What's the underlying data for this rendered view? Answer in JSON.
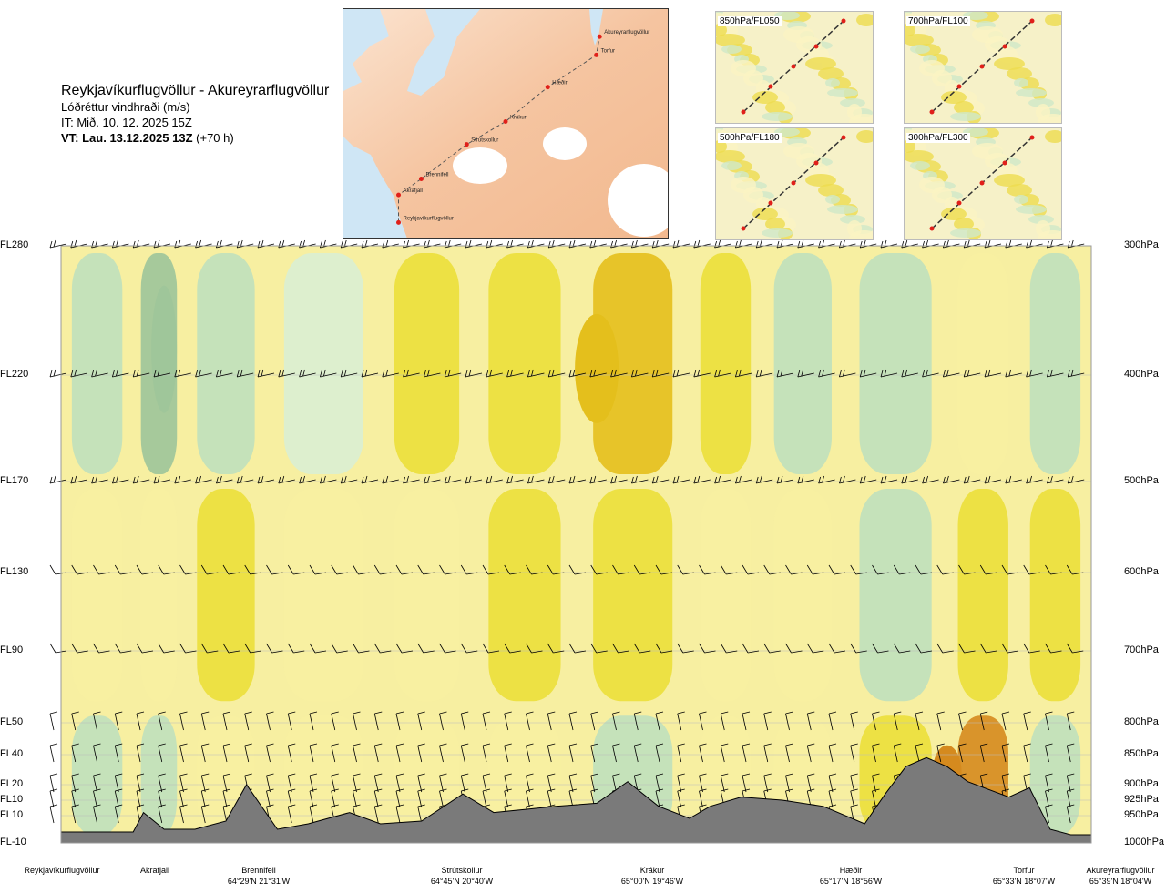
{
  "header": {
    "route": "Reykjavíkurflugvöllur - Akureyrarflugvöllur",
    "quantity": "Lóðréttur vindhraði (m/s)",
    "issued": "IT: Mið. 10. 12. 2025 15Z",
    "valid_bold": "VT: Lau. 13.12.2025 13Z",
    "valid_lead": "(+70 h)"
  },
  "map": {
    "points": [
      {
        "name": "Reykjavíkurflugvöllur",
        "x": 0.17,
        "y": 0.93
      },
      {
        "name": "Akrafjall",
        "x": 0.17,
        "y": 0.81
      },
      {
        "name": "Brennifell",
        "x": 0.24,
        "y": 0.74
      },
      {
        "name": "Strútskollur",
        "x": 0.38,
        "y": 0.59
      },
      {
        "name": "Krákur",
        "x": 0.5,
        "y": 0.49
      },
      {
        "name": "Hæðir",
        "x": 0.63,
        "y": 0.34
      },
      {
        "name": "Torfur",
        "x": 0.78,
        "y": 0.2
      },
      {
        "name": "Akureyrarflugvöllur",
        "x": 0.79,
        "y": 0.12
      }
    ]
  },
  "minimaps": [
    {
      "label": "850hPa/FL050"
    },
    {
      "label": "700hPa/FL100"
    },
    {
      "label": "500hPa/FL180"
    },
    {
      "label": "300hPa/FL300"
    }
  ],
  "left_axis": [
    "FL280",
    "FL220",
    "FL170",
    "FL130",
    "FL90",
    "FL50",
    "FL40",
    "FL20",
    "FL10",
    "FL10",
    "FL-10"
  ],
  "right_axis": [
    "300hPa",
    "400hPa",
    "500hPa",
    "600hPa",
    "700hPa",
    "800hPa",
    "850hPa",
    "900hPa",
    "925hPa",
    "950hPa",
    "1000hPa"
  ],
  "waypoints": [
    {
      "name": "Reykjavíkurflugvöllur",
      "coord": ""
    },
    {
      "name": "Akrafjall",
      "coord": ""
    },
    {
      "name": "Brennifell",
      "coord": "64°29'N 21°31'W"
    },
    {
      "name": "Strútskollur",
      "coord": "64°45'N 20°40'W"
    },
    {
      "name": "Krákur",
      "coord": "65°00'N 19°46'W"
    },
    {
      "name": "Hæðir",
      "coord": "65°17'N 18°56'W"
    },
    {
      "name": "Torfur",
      "coord": "65°33'N 18°07'W"
    },
    {
      "name": "Akureyrarflugvöllur",
      "coord": "65°39'N 18°04'W"
    }
  ],
  "chart_data": {
    "type": "heatmap",
    "variable": "vertical wind speed (m/s)",
    "y_levels_hpa": [
      300,
      400,
      500,
      600,
      700,
      800,
      850,
      900,
      925,
      950,
      1000
    ],
    "x_range": [
      0,
      1
    ],
    "colors": {
      "strong_down": "#9cc49a",
      "down": "#bfe0bd",
      "weak_down": "#d9eed3",
      "neutral": "#fbf6c4",
      "weak_up": "#f7efa1",
      "up": "#ebdf3a",
      "strong_up": "#e4bf1c",
      "very_strong_up": "#d58a1e",
      "terrain": "#7a7a7a"
    },
    "columns": [
      {
        "x": 0.0,
        "top": "down",
        "mid": "weak_up",
        "low": "down"
      },
      {
        "x": 0.07,
        "top": "strong_down",
        "mid": "weak_up",
        "low": "down"
      },
      {
        "x": 0.12,
        "top": "down",
        "mid": "up",
        "low": "weak_up"
      },
      {
        "x": 0.2,
        "top": "weak_down",
        "mid": "weak_up",
        "low": "weak_up"
      },
      {
        "x": 0.31,
        "top": "up",
        "mid": "weak_up",
        "low": "weak_up"
      },
      {
        "x": 0.4,
        "top": "up",
        "mid": "up",
        "low": "weak_up"
      },
      {
        "x": 0.5,
        "top": "strong_up",
        "mid": "up",
        "low": "down"
      },
      {
        "x": 0.61,
        "top": "up",
        "mid": "weak_up",
        "low": "weak_up"
      },
      {
        "x": 0.68,
        "top": "down",
        "mid": "weak_up",
        "low": "weak_up"
      },
      {
        "x": 0.76,
        "top": "down",
        "mid": "down",
        "low": "up"
      },
      {
        "x": 0.86,
        "top": "weak_up",
        "mid": "up",
        "low": "very_strong_up"
      },
      {
        "x": 0.93,
        "top": "down",
        "mid": "up",
        "low": "down"
      },
      {
        "x": 1.0,
        "top": "down",
        "mid": "weak_up",
        "low": "weak_up"
      }
    ],
    "terrain": {
      "x": [
        0.0,
        0.07,
        0.08,
        0.1,
        0.13,
        0.16,
        0.18,
        0.21,
        0.24,
        0.28,
        0.31,
        0.35,
        0.39,
        0.42,
        0.45,
        0.48,
        0.52,
        0.55,
        0.58,
        0.61,
        0.63,
        0.66,
        0.7,
        0.74,
        0.78,
        0.8,
        0.82,
        0.84,
        0.86,
        0.88,
        0.92,
        0.94,
        0.96,
        0.98,
        1.0
      ],
      "p_hpa": [
        980,
        980,
        945,
        975,
        975,
        960,
        900,
        975,
        965,
        945,
        965,
        960,
        915,
        945,
        940,
        935,
        930,
        895,
        935,
        955,
        935,
        920,
        925,
        935,
        965,
        915,
        870,
        855,
        870,
        895,
        920,
        905,
        975,
        985,
        985
      ]
    }
  }
}
